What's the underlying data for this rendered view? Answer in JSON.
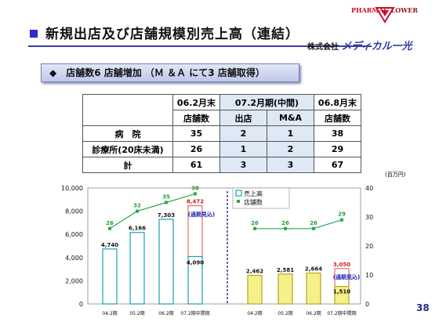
{
  "title": "新規出店及び店舗規模別売上高（連結）",
  "logo": {
    "top_text": "PHARMAC",
    "top_text2": "LOWER",
    "company_prefix": "株式会社",
    "company_brand": "メディカル一光"
  },
  "banner": "◆　店舗数6 店舗増加 （Ｍ ＆Ａ にて3 店舗取得）",
  "table": {
    "header1": [
      "",
      "06.2月末",
      "07.2月期(中間)",
      "06.8月末"
    ],
    "header2": [
      "",
      "店舗数",
      "出店",
      "M&A",
      "店舗数"
    ],
    "rows": [
      {
        "label": "病　院",
        "values": [
          "35",
          "2",
          "1",
          "38"
        ]
      },
      {
        "label": "診療所(20床未満)",
        "values": [
          "26",
          "1",
          "2",
          "29"
        ]
      },
      {
        "label": "計",
        "values": [
          "61",
          "3",
          "3",
          "67"
        ]
      }
    ]
  },
  "unit_right": "(百万円)",
  "page_number": "38",
  "colors": {
    "hospital_bar": "#ffffff",
    "hospital_border": "#18a0b8",
    "clinic_bar": "#f5f08a",
    "clinic_border": "#b0a820",
    "forecast_border": "#e05050",
    "line_hospital": "#2aa84a",
    "line_clinic": "#2aa84a"
  },
  "chart_data": {
    "type": "bar",
    "legend": [
      "売上高",
      "店舗数"
    ],
    "left_axis": {
      "ylim": [
        0,
        10000
      ],
      "ticks": [
        "0",
        "2,000",
        "4,000",
        "6,000",
        "8,000",
        "10,000"
      ]
    },
    "right_axis": {
      "ylim": [
        0,
        40
      ],
      "ticks": [
        "0",
        "10",
        "20",
        "30",
        "40"
      ]
    },
    "groups": [
      {
        "name": "病院",
        "categories": [
          "04.2期",
          "05.2期",
          "06.2期",
          "07.2期中間期"
        ],
        "sales": [
          4740,
          6166,
          7303,
          4090
        ],
        "sales_labels": [
          "4,740",
          "6,166",
          "7,303",
          "4,090"
        ],
        "forecast": 8472,
        "forecast_label": "8,472",
        "forecast_note": "(通期見込)",
        "stores": [
          26,
          32,
          35,
          38
        ]
      },
      {
        "name": "診療所",
        "categories": [
          "04.2期",
          "05.2期",
          "06.2期",
          "07.2期中間期"
        ],
        "sales": [
          2462,
          2581,
          2664,
          1510
        ],
        "sales_labels": [
          "2,462",
          "2,581",
          "2,664",
          "1,510"
        ],
        "forecast": 3050,
        "forecast_label": "3,050",
        "forecast_note": "(通期見込)",
        "stores": [
          26,
          26,
          26,
          29
        ]
      }
    ]
  }
}
